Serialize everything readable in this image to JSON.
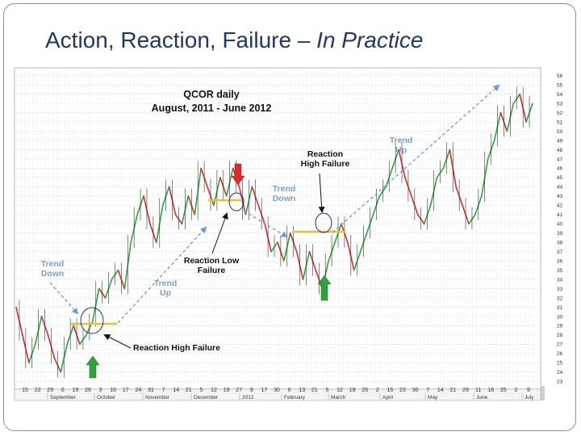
{
  "slide": {
    "title_main": "Action, Reaction, Failure – ",
    "title_italic": "In Practice"
  },
  "chart_data": {
    "type": "line",
    "title": "QCOR daily",
    "subtitle": "August, 2011 - June 2012",
    "ylim": [
      22.5,
      56.5
    ],
    "y_ticks": [
      23,
      24,
      25,
      26,
      27,
      28,
      29,
      30,
      31,
      32,
      33,
      34,
      35,
      36,
      37,
      38,
      39,
      40,
      41,
      42,
      43,
      44,
      45,
      46,
      47,
      48,
      49,
      50,
      51,
      52,
      53,
      54,
      55,
      56
    ],
    "x_tick_labels": [
      "15",
      "22",
      "29",
      "6",
      "19",
      "26",
      "3",
      "10",
      "17",
      "24",
      "31",
      "7",
      "14",
      "21",
      "5",
      "12",
      "19",
      "27",
      "9",
      "17",
      "30",
      "6",
      "13",
      "21",
      "5",
      "12",
      "19",
      "26",
      "2",
      "16",
      "23",
      "30",
      "7",
      "14",
      "21",
      "29",
      "11",
      "18",
      "25",
      "2",
      "9"
    ],
    "months": [
      "September",
      "October",
      "November",
      "December",
      "2012",
      "February",
      "March",
      "April",
      "May",
      "June",
      "July"
    ],
    "grid": true,
    "series": [
      {
        "values": [
          31,
          28,
          25,
          27,
          30,
          28,
          25.5,
          24,
          27,
          29,
          27,
          28,
          29.5,
          33,
          32,
          34,
          35,
          33,
          38,
          41,
          43,
          40,
          38,
          42,
          44,
          41,
          40,
          43,
          41,
          46,
          44,
          42,
          45,
          43,
          46,
          44,
          41,
          44,
          42,
          40,
          37,
          38,
          36,
          39,
          37,
          34,
          37,
          35,
          33,
          36,
          38,
          40,
          38,
          35,
          37,
          39,
          41,
          43,
          44,
          46,
          48,
          45,
          43,
          41,
          40,
          42,
          45,
          46,
          48,
          44,
          42,
          40,
          41,
          43,
          47,
          49,
          52,
          50,
          53,
          54,
          51,
          53
        ]
      }
    ],
    "colors": {
      "up": "#2ba43a",
      "down": "#d92c2c",
      "trend_arrow": "#6f9bd0",
      "failure_marker": "#e5c52a",
      "circle": "#1f2f8a"
    },
    "annotations": [
      {
        "text": "Trend Down",
        "lines": [
          "Trend",
          "Down"
        ],
        "color": "blue"
      },
      {
        "text": "Trend Up",
        "lines": [
          "Trend",
          "Up"
        ],
        "color": "blue"
      },
      {
        "text": "Trend Down",
        "lines": [
          "Trend",
          "Down"
        ],
        "color": "blue"
      },
      {
        "text": "Trend Up",
        "lines": [
          "Trend",
          "Up"
        ],
        "color": "blue"
      },
      {
        "text": "Reaction High Failure",
        "lines": [
          "Reaction High Failure"
        ],
        "color": "black"
      },
      {
        "text": "Reaction Low Failure",
        "lines": [
          "Reaction Low",
          "Failure"
        ],
        "color": "black"
      },
      {
        "text": "Reaction High Failure",
        "lines": [
          "Reaction",
          "High Failure"
        ],
        "color": "black"
      }
    ]
  }
}
